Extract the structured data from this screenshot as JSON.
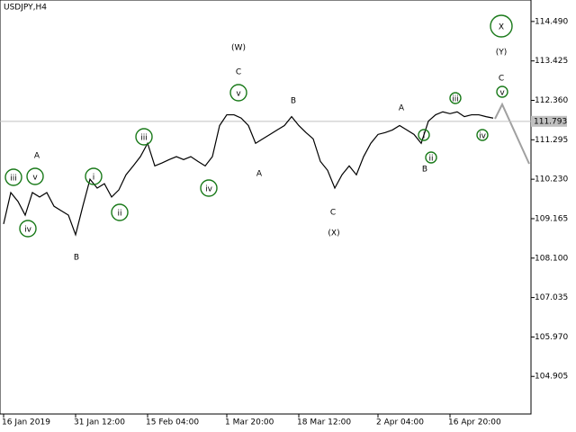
{
  "chart_data": {
    "type": "line",
    "title": "USDJPY,H4",
    "categories": [
      "16 Jan 2019",
      null,
      null,
      null,
      null,
      null,
      null,
      null,
      null,
      null,
      "31 Jan 12:00",
      null,
      null,
      null,
      null,
      null,
      null,
      null,
      null,
      null,
      "15 Feb 04:00",
      null,
      null,
      null,
      null,
      null,
      null,
      null,
      null,
      null,
      null,
      "1 Mar 20:00",
      null,
      null,
      null,
      null,
      null,
      null,
      null,
      null,
      null,
      "18 Mar 12:00",
      null,
      null,
      null,
      null,
      null,
      null,
      null,
      null,
      null,
      null,
      "2 Apr 04:00",
      null,
      null,
      null,
      null,
      null,
      null,
      null,
      null,
      null,
      "16 Apr 20:00",
      null,
      null,
      null,
      null,
      null,
      null
    ],
    "series": [
      {
        "color": "#000000",
        "values": [
          109.02,
          109.87,
          109.63,
          109.26,
          109.87,
          109.75,
          109.87,
          109.5,
          109.38,
          109.26,
          108.73,
          109.5,
          110.23,
          109.99,
          110.11,
          109.75,
          109.94,
          110.35,
          110.59,
          110.84,
          111.2,
          110.59,
          110.67,
          110.76,
          110.84,
          110.76,
          110.84,
          110.71,
          110.59,
          110.84,
          111.68,
          111.97,
          111.97,
          111.88,
          111.68,
          111.2,
          111.32,
          111.44,
          111.56,
          111.68,
          111.92,
          111.68,
          111.49,
          111.32,
          110.71,
          110.47,
          109.99,
          110.35,
          110.59,
          110.35,
          110.84,
          111.2,
          111.44,
          111.49,
          111.56,
          111.68,
          111.56,
          111.44,
          111.2,
          111.8,
          111.97,
          112.05,
          112.0,
          112.05,
          111.92,
          111.97,
          111.97,
          111.92,
          111.88
        ]
      }
    ],
    "ylim": [
      103.89,
      115.07
    ],
    "yticks": [
      {
        "value": 114.49,
        "label": "114.490"
      },
      113.425,
      {
        "value": 112.36,
        "label": "112.360"
      },
      111.295,
      {
        "value": 110.23,
        "label": "110.230"
      },
      109.165,
      {
        "value": 108.1,
        "label": "108.100"
      },
      107.035,
      {
        "value": 105.97,
        "label": "105.970"
      },
      104.905
    ],
    "current_price": 111.793,
    "annotations": [
      "(W)",
      "C",
      "v",
      "B",
      "A",
      "iv",
      "iii",
      "ii",
      "i",
      "A",
      "iii",
      "v",
      "iv",
      "B",
      "C",
      "(X)",
      "A",
      "B",
      "i",
      "ii",
      "iii",
      "iv",
      "v",
      "C",
      "(Y)",
      "X"
    ]
  }
}
